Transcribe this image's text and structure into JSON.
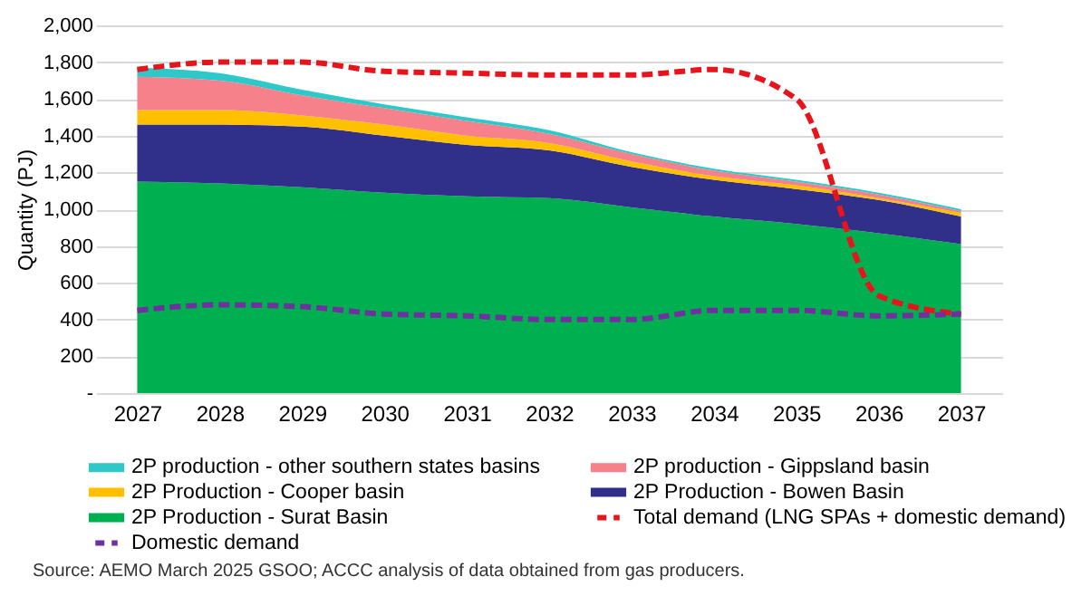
{
  "chart_data": {
    "type": "area",
    "stacked": true,
    "ylabel": "Quantity (PJ)",
    "categories": [
      "2027",
      "2028",
      "2029",
      "2030",
      "2031",
      "2032",
      "2033",
      "2034",
      "2035",
      "2036",
      "2037"
    ],
    "series": [
      {
        "name": "2P Production - Surat Basin",
        "color": "#00b050",
        "values": [
          1150,
          1140,
          1120,
          1090,
          1070,
          1060,
          1010,
          960,
          920,
          870,
          810
        ]
      },
      {
        "name": "2P Production - Bowen Basin",
        "color": "#302f8a",
        "values": [
          310,
          320,
          330,
          310,
          280,
          260,
          220,
          200,
          190,
          180,
          150
        ]
      },
      {
        "name": "2P Production - Cooper basin",
        "color": "#ffc000",
        "values": [
          80,
          80,
          60,
          60,
          50,
          40,
          30,
          20,
          20,
          10,
          20
        ]
      },
      {
        "name": "2P production - Gippsland basin",
        "color": "#f7818a",
        "values": [
          180,
          160,
          110,
          90,
          80,
          50,
          40,
          30,
          20,
          20,
          10
        ]
      },
      {
        "name": "2P production - other southern states basins",
        "color": "#2ec8c8",
        "values": [
          50,
          40,
          30,
          20,
          20,
          20,
          10,
          10,
          10,
          10,
          10
        ]
      },
      {
        "name": "Total demand (LNG SPAs + domestic demand)",
        "type": "line",
        "line_style": "dashed",
        "color": "#e8141c",
        "values": [
          1760,
          1800,
          1800,
          1750,
          1740,
          1730,
          1730,
          1760,
          1600,
          530,
          430
        ]
      },
      {
        "name": "Domestic demand",
        "type": "line",
        "line_style": "dashed",
        "color": "#7030a0",
        "values": [
          450,
          480,
          470,
          430,
          420,
          400,
          400,
          450,
          450,
          420,
          430
        ]
      }
    ],
    "ylim": [
      0,
      2000
    ],
    "yticks": [
      {
        "value": 0,
        "label": "-"
      },
      200,
      400,
      600,
      800,
      {
        "value": 1000,
        "label": "1,000"
      },
      {
        "value": 1200,
        "label": "1,200"
      },
      {
        "value": 1400,
        "label": "1,400"
      },
      {
        "value": 1600,
        "label": "1,600"
      },
      {
        "value": 1800,
        "label": "1,800"
      },
      {
        "value": 2000,
        "label": "2,000"
      }
    ],
    "grid": "y",
    "legend": "bottom",
    "annotations": [
      "Source:   AEMO March 2025 GSOO; ACCC analysis of data obtained from gas producers."
    ]
  }
}
